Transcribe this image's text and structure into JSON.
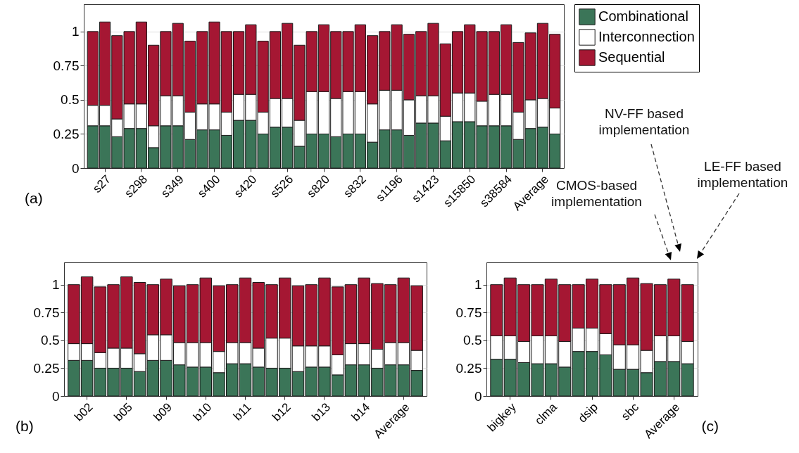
{
  "chart_data": [
    {
      "type": "bar",
      "title": "(a)",
      "stacked": true,
      "grid": "y",
      "legend": "right",
      "categories": [
        null,
        "s27",
        null,
        null,
        "s298",
        null,
        null,
        "s349",
        null,
        null,
        "s400",
        null,
        null,
        "s420",
        null,
        null,
        "s526",
        null,
        null,
        "s820",
        null,
        null,
        "s832",
        null,
        null,
        "s1196",
        null,
        null,
        "s1423",
        null,
        null,
        "s15850",
        null,
        null,
        "s38584",
        null,
        null,
        "Average",
        null
      ],
      "ylim": [
        0,
        1.2
      ],
      "yticks": [
        0,
        0.25,
        0.5,
        0.75,
        1
      ],
      "series": [
        {
          "name": "Combinational",
          "color": "#3b7558",
          "values": [
            0.31,
            0.31,
            0.23,
            0.29,
            0.29,
            0.15,
            0.31,
            0.31,
            0.21,
            0.28,
            0.28,
            0.24,
            0.35,
            0.35,
            0.25,
            0.3,
            0.3,
            0.16,
            0.25,
            0.25,
            0.23,
            0.25,
            0.25,
            0.19,
            0.28,
            0.28,
            0.24,
            0.33,
            0.33,
            0.2,
            0.34,
            0.34,
            0.31,
            0.31,
            0.31,
            0.21,
            0.29,
            0.3,
            0.25
          ]
        },
        {
          "name": "Interconnection",
          "color": "#ffffff",
          "values": [
            0.15,
            0.15,
            0.13,
            0.18,
            0.18,
            0.16,
            0.22,
            0.22,
            0.2,
            0.19,
            0.19,
            0.17,
            0.19,
            0.19,
            0.16,
            0.21,
            0.21,
            0.19,
            0.31,
            0.31,
            0.28,
            0.31,
            0.31,
            0.28,
            0.29,
            0.29,
            0.26,
            0.2,
            0.2,
            0.18,
            0.21,
            0.21,
            0.18,
            0.23,
            0.23,
            0.2,
            0.21,
            0.21,
            0.19
          ]
        },
        {
          "name": "Sequential",
          "color": "#a51733",
          "values": [
            0.54,
            0.61,
            0.61,
            0.53,
            0.6,
            0.59,
            0.47,
            0.53,
            0.52,
            0.53,
            0.6,
            0.59,
            0.46,
            0.51,
            0.52,
            0.49,
            0.55,
            0.55,
            0.44,
            0.49,
            0.49,
            0.44,
            0.49,
            0.5,
            0.43,
            0.48,
            0.48,
            0.47,
            0.53,
            0.53,
            0.45,
            0.5,
            0.51,
            0.46,
            0.51,
            0.51,
            0.49,
            0.55,
            0.54
          ]
        }
      ]
    },
    {
      "type": "bar",
      "title": "(b)",
      "stacked": true,
      "grid": "y",
      "categories": [
        null,
        "b02",
        null,
        null,
        "b05",
        null,
        null,
        "b09",
        null,
        null,
        "b10",
        null,
        null,
        "b11",
        null,
        null,
        "b12",
        null,
        null,
        "b13",
        null,
        null,
        "b14",
        null,
        null,
        "Average",
        null
      ],
      "ylim": [
        0,
        1.2
      ],
      "yticks": [
        0,
        0.25,
        0.5,
        0.75,
        1
      ],
      "series": [
        {
          "color": "#3b7558",
          "values": [
            0.32,
            0.32,
            0.25,
            0.25,
            0.25,
            0.22,
            0.32,
            0.32,
            0.28,
            0.26,
            0.26,
            0.21,
            0.29,
            0.29,
            0.26,
            0.25,
            0.25,
            0.22,
            0.26,
            0.26,
            0.19,
            0.28,
            0.28,
            0.25,
            0.28,
            0.28,
            0.23
          ]
        },
        {
          "color": "#ffffff",
          "values": [
            0.15,
            0.15,
            0.14,
            0.18,
            0.18,
            0.16,
            0.23,
            0.23,
            0.2,
            0.22,
            0.22,
            0.19,
            0.19,
            0.19,
            0.17,
            0.27,
            0.27,
            0.23,
            0.19,
            0.19,
            0.18,
            0.19,
            0.19,
            0.17,
            0.2,
            0.2,
            0.18
          ]
        },
        {
          "color": "#a51733",
          "values": [
            0.53,
            0.6,
            0.59,
            0.57,
            0.64,
            0.64,
            0.45,
            0.5,
            0.51,
            0.52,
            0.58,
            0.59,
            0.52,
            0.58,
            0.59,
            0.48,
            0.54,
            0.54,
            0.55,
            0.61,
            0.61,
            0.53,
            0.59,
            0.59,
            0.52,
            0.58,
            0.58
          ]
        }
      ]
    },
    {
      "type": "bar",
      "title": "(c)",
      "stacked": true,
      "grid": "y",
      "categories": [
        null,
        "bigkey",
        null,
        null,
        "clma",
        null,
        null,
        "dsip",
        null,
        null,
        "sbc",
        null,
        null,
        "Average",
        null
      ],
      "ylim": [
        0,
        1.2
      ],
      "yticks": [
        0,
        0.25,
        0.5,
        0.75,
        1
      ],
      "annotations": [
        "NV-FF based implementation",
        "LE-FF based implementation",
        "CMOS-based implementation"
      ],
      "series": [
        {
          "color": "#3b7558",
          "values": [
            0.33,
            0.33,
            0.3,
            0.29,
            0.29,
            0.26,
            0.4,
            0.4,
            0.37,
            0.24,
            0.24,
            0.21,
            0.31,
            0.31,
            0.29
          ]
        },
        {
          "color": "#ffffff",
          "values": [
            0.21,
            0.21,
            0.19,
            0.25,
            0.25,
            0.23,
            0.21,
            0.21,
            0.19,
            0.22,
            0.22,
            0.2,
            0.23,
            0.23,
            0.2
          ]
        },
        {
          "color": "#a51733",
          "values": [
            0.46,
            0.52,
            0.51,
            0.46,
            0.51,
            0.51,
            0.39,
            0.44,
            0.44,
            0.54,
            0.6,
            0.6,
            0.46,
            0.51,
            0.51
          ]
        }
      ]
    }
  ]
}
